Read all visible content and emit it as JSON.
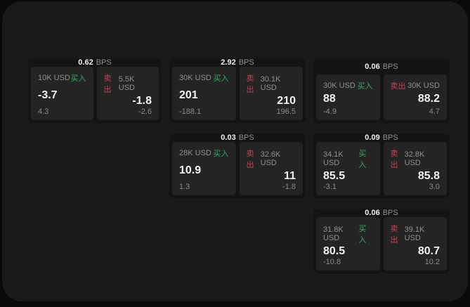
{
  "labels": {
    "bps_suffix": "BPS",
    "buy": "买入",
    "sell": "卖出"
  },
  "colors": {
    "outer_bg": "#0a0a0a",
    "surface": "#1a1a1a",
    "card_bg": "#141414",
    "panel_bg": "#242424",
    "text_primary": "#f2f2f2",
    "text_secondary": "#909090",
    "buy_green": "#36a86a",
    "sell_red": "#c9405a"
  },
  "cards": [
    {
      "bps": "0.62",
      "buy": {
        "amount": "10K USD",
        "value": "-3.7",
        "sub": "4.3"
      },
      "sell": {
        "amount": "5.5K USD",
        "value": "-1.8",
        "sub": "-2.6"
      }
    },
    {
      "bps": "2.92",
      "buy": {
        "amount": "30K USD",
        "value": "201",
        "sub": "-188.1"
      },
      "sell": {
        "amount": "30.1K USD",
        "value": "210",
        "sub": "196.5"
      }
    },
    {
      "bps": "0.06",
      "buy": {
        "amount": "30K USD",
        "value": "88",
        "sub": "-4.9"
      },
      "sell": {
        "amount": "30K USD",
        "value": "88.2",
        "sub": "4.7"
      }
    },
    {
      "bps": "0.03",
      "buy": {
        "amount": "28K USD",
        "value": "10.9",
        "sub": "1.3"
      },
      "sell": {
        "amount": "32.6K USD",
        "value": "11",
        "sub": "-1.8"
      }
    },
    {
      "bps": "0.09",
      "buy": {
        "amount": "34.1K USD",
        "value": "85.5",
        "sub": "-3.1"
      },
      "sell": {
        "amount": "32.8K USD",
        "value": "85.8",
        "sub": "3.0"
      }
    },
    {
      "bps": "0.06",
      "buy": {
        "amount": "31.8K USD",
        "value": "80.5",
        "sub": "-10.8"
      },
      "sell": {
        "amount": "39.1K USD",
        "value": "80.7",
        "sub": "10.2"
      }
    }
  ]
}
